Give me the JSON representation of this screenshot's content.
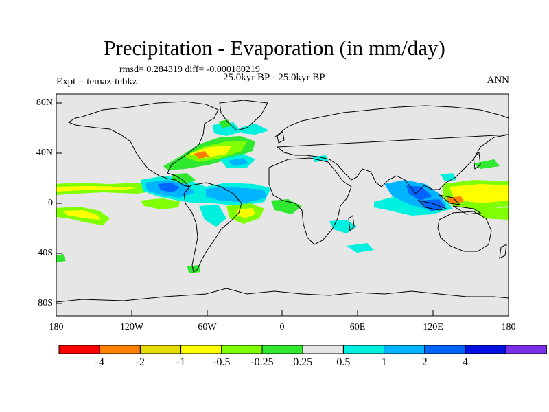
{
  "title": "Precipitation - Evaporation (in mm/day)",
  "stats": "rmsd= 0.284319 diff= -0.000180219",
  "experiment": "Expt = temaz-tebkz",
  "period": "25.0kyr BP - 25.0kyr BP",
  "season": "ANN",
  "axes": {
    "lat_labels": [
      "80N",
      "40N",
      "0",
      "40S",
      "80S"
    ],
    "lon_labels": [
      "180",
      "120W",
      "60W",
      "0",
      "60E",
      "120E",
      "180"
    ]
  },
  "colorbar": {
    "colors": [
      "#ff0000",
      "#ff8000",
      "#e6dc00",
      "#ffff00",
      "#80ff00",
      "#30e830",
      "#e6e6e6",
      "#00f0e0",
      "#00b4ff",
      "#0064ff",
      "#0010e0",
      "#7a30e8"
    ],
    "labels": [
      "-4",
      "-2",
      "-1",
      "-0.5",
      "-0.25",
      "0.25",
      "0.5",
      "1",
      "2",
      "4"
    ]
  },
  "colors": {
    "background": "#e6e6e6",
    "coast": "#000000"
  }
}
